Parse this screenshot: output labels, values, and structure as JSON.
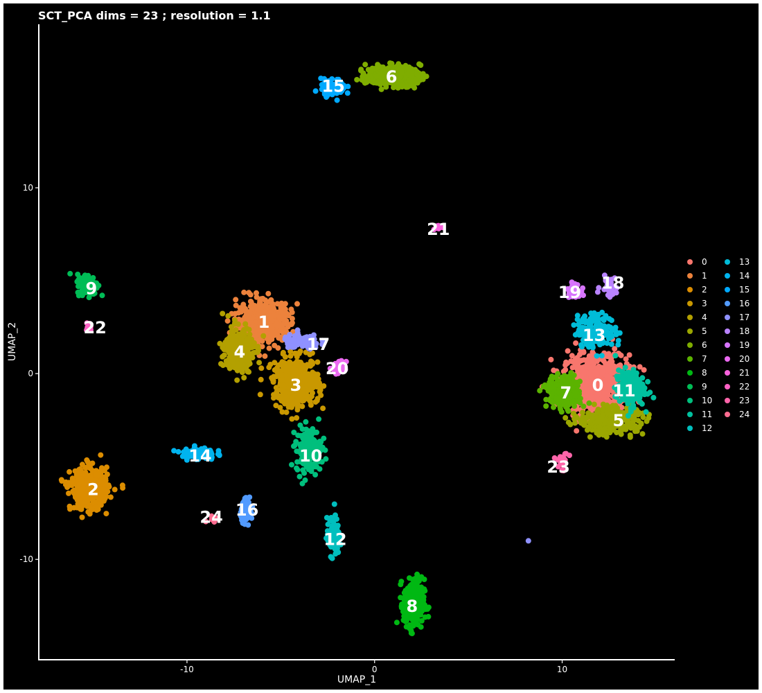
{
  "chart_data": {
    "type": "scatter",
    "title": "SCT_PCA dims =  23 ; resolution = 1.1",
    "xlabel": "UMAP_1",
    "ylabel": "UMAP_2",
    "xlim": [
      -17.9,
      16
    ],
    "ylim": [
      -15.4,
      18.8
    ],
    "x_ticks": [
      -10,
      0,
      10
    ],
    "y_ticks": [
      -10,
      0,
      10
    ],
    "grid": false,
    "background": "#000000",
    "legend_position": "right",
    "clusters": [
      {
        "name": "0",
        "color": "#F8766D",
        "center": [
          11.8,
          -0.6
        ],
        "spread": [
          1.6,
          1.5
        ],
        "n": 600
      },
      {
        "name": "1",
        "color": "#EC823C",
        "center": [
          -5.9,
          2.8
        ],
        "spread": [
          1.3,
          1.0
        ],
        "n": 450
      },
      {
        "name": "2",
        "color": "#DC8D00",
        "center": [
          -15.2,
          -6.2
        ],
        "spread": [
          0.9,
          1.0
        ],
        "n": 400
      },
      {
        "name": "3",
        "color": "#C99800",
        "center": [
          -4.2,
          -0.5
        ],
        "spread": [
          1.1,
          1.2
        ],
        "n": 420
      },
      {
        "name": "4",
        "color": "#B3A000",
        "center": [
          -7.2,
          1.3
        ],
        "spread": [
          0.7,
          1.1
        ],
        "n": 300
      },
      {
        "name": "5",
        "color": "#9BA700",
        "center": [
          12.5,
          -2.5
        ],
        "spread": [
          1.4,
          0.6
        ],
        "n": 380
      },
      {
        "name": "6",
        "color": "#7FAD00",
        "center": [
          1.0,
          16.0
        ],
        "spread": [
          1.3,
          0.5
        ],
        "n": 350
      },
      {
        "name": "7",
        "color": "#5BB300",
        "center": [
          10.1,
          -1.0
        ],
        "spread": [
          0.8,
          0.8
        ],
        "n": 250
      },
      {
        "name": "8",
        "color": "#00B813",
        "center": [
          2.1,
          -12.4
        ],
        "spread": [
          0.5,
          1.2
        ],
        "n": 280
      },
      {
        "name": "9",
        "color": "#00BC56",
        "center": [
          -15.3,
          4.8
        ],
        "spread": [
          0.5,
          0.5
        ],
        "n": 160
      },
      {
        "name": "10",
        "color": "#00BF7D",
        "center": [
          -3.5,
          -4.1
        ],
        "spread": [
          0.6,
          1.1
        ],
        "n": 200
      },
      {
        "name": "11",
        "color": "#00C19F",
        "center": [
          13.6,
          -0.8
        ],
        "spread": [
          0.7,
          0.9
        ],
        "n": 180
      },
      {
        "name": "12",
        "color": "#00BFBE",
        "center": [
          -2.2,
          -8.8
        ],
        "spread": [
          0.3,
          0.9
        ],
        "n": 120
      },
      {
        "name": "13",
        "color": "#00BCD8",
        "center": [
          11.8,
          2.3
        ],
        "spread": [
          0.9,
          0.8
        ],
        "n": 200
      },
      {
        "name": "14",
        "color": "#00B4EF",
        "center": [
          -9.4,
          -4.3
        ],
        "spread": [
          0.8,
          0.3
        ],
        "n": 100
      },
      {
        "name": "15",
        "color": "#00A9FF",
        "center": [
          -2.2,
          15.4
        ],
        "spread": [
          0.6,
          0.4
        ],
        "n": 100
      },
      {
        "name": "16",
        "color": "#529BFF",
        "center": [
          -6.8,
          -7.4
        ],
        "spread": [
          0.3,
          0.5
        ],
        "n": 90
      },
      {
        "name": "17",
        "color": "#8F91FF",
        "center": [
          -3.9,
          1.7
        ],
        "spread": [
          0.9,
          0.35
        ],
        "n": 120
      },
      {
        "name": "18",
        "color": "#B983FF",
        "center": [
          12.5,
          4.7
        ],
        "spread": [
          0.4,
          0.5
        ],
        "n": 40
      },
      {
        "name": "19",
        "color": "#D774FD",
        "center": [
          10.6,
          4.5
        ],
        "spread": [
          0.3,
          0.3
        ],
        "n": 50
      },
      {
        "name": "20",
        "color": "#EB69F0",
        "center": [
          -1.9,
          0.3
        ],
        "spread": [
          0.3,
          0.3
        ],
        "n": 40
      },
      {
        "name": "21",
        "color": "#F962DD",
        "center": [
          3.4,
          7.9
        ],
        "spread": [
          0.2,
          0.15
        ],
        "n": 15
      },
      {
        "name": "22",
        "color": "#FF61C5",
        "center": [
          -15.2,
          2.5
        ],
        "spread": [
          0.15,
          0.2
        ],
        "n": 15
      },
      {
        "name": "23",
        "color": "#FF65AA",
        "center": [
          10.0,
          -4.7
        ],
        "spread": [
          0.3,
          0.4
        ],
        "n": 20
      },
      {
        "name": "24",
        "color": "#FF6C90",
        "center": [
          -8.6,
          -7.8
        ],
        "spread": [
          0.3,
          0.15
        ],
        "n": 15
      }
    ],
    "cluster_label_positions": [
      {
        "name": "0",
        "x": 11.9,
        "y": -0.6
      },
      {
        "name": "1",
        "x": -5.9,
        "y": 2.8
      },
      {
        "name": "2",
        "x": -15.0,
        "y": -6.2
      },
      {
        "name": "3",
        "x": -4.2,
        "y": -0.6
      },
      {
        "name": "4",
        "x": -7.2,
        "y": 1.2
      },
      {
        "name": "5",
        "x": 13.0,
        "y": -2.5
      },
      {
        "name": "6",
        "x": 0.9,
        "y": 16.0
      },
      {
        "name": "7",
        "x": 10.2,
        "y": -1.0
      },
      {
        "name": "8",
        "x": 2.0,
        "y": -12.5
      },
      {
        "name": "9",
        "x": -15.1,
        "y": 4.6
      },
      {
        "name": "10",
        "x": -3.4,
        "y": -4.4
      },
      {
        "name": "11",
        "x": 13.3,
        "y": -0.9
      },
      {
        "name": "12",
        "x": -2.1,
        "y": -8.9
      },
      {
        "name": "13",
        "x": 11.7,
        "y": 2.1
      },
      {
        "name": "14",
        "x": -9.3,
        "y": -4.4
      },
      {
        "name": "15",
        "x": -2.2,
        "y": 15.5
      },
      {
        "name": "16",
        "x": -6.8,
        "y": -7.3
      },
      {
        "name": "17",
        "x": -3.0,
        "y": 1.6
      },
      {
        "name": "18",
        "x": 12.7,
        "y": 4.9
      },
      {
        "name": "19",
        "x": 10.4,
        "y": 4.4
      },
      {
        "name": "20",
        "x": -2.0,
        "y": 0.3
      },
      {
        "name": "21",
        "x": 3.4,
        "y": 7.8
      },
      {
        "name": "22",
        "x": -14.9,
        "y": 2.5
      },
      {
        "name": "23",
        "x": 9.8,
        "y": -5.0
      },
      {
        "name": "24",
        "x": -8.7,
        "y": -7.7
      }
    ],
    "outliers": [
      {
        "name": "17",
        "x": 8.2,
        "y": -9.0
      }
    ],
    "legend_columns": [
      [
        "0",
        "1",
        "2",
        "3",
        "4",
        "5",
        "6",
        "7",
        "8",
        "9",
        "10",
        "11",
        "12"
      ],
      [
        "13",
        "14",
        "15",
        "16",
        "17",
        "18",
        "19",
        "20",
        "21",
        "22",
        "23",
        "24"
      ]
    ]
  }
}
